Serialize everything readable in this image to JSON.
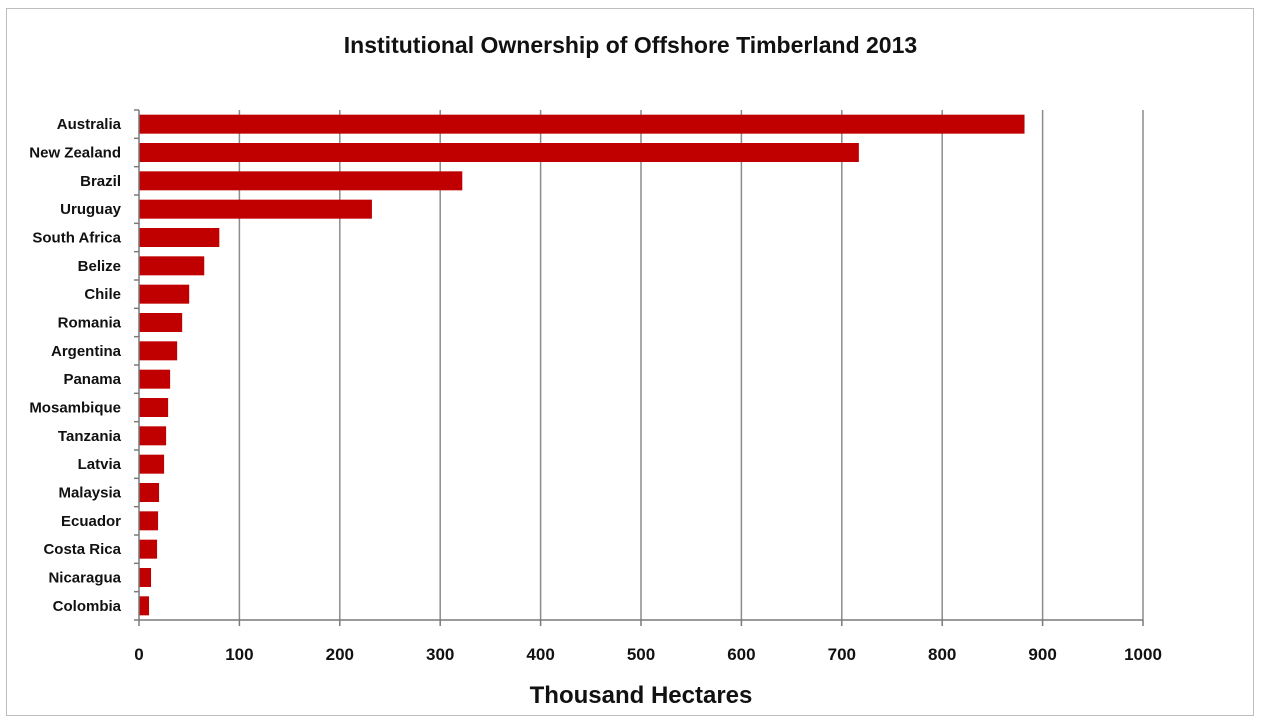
{
  "chart_data": {
    "type": "bar",
    "orientation": "horizontal",
    "title": "Institutional Ownership of Offshore Timberland 2013",
    "xlabel": "Thousand Hectares",
    "ylabel": "",
    "xlim": [
      0,
      1000
    ],
    "xticks": [
      0,
      100,
      200,
      300,
      400,
      500,
      600,
      700,
      800,
      900,
      1000
    ],
    "grid": "vertical",
    "legend": "none",
    "bar_color": "#C00000",
    "categories": [
      "Australia",
      "New Zealand",
      "Brazil",
      "Uruguay",
      "South Africa",
      "Belize",
      "Chile",
      "Romania",
      "Argentina",
      "Panama",
      "Mosambique",
      "Tanzania",
      "Latvia",
      "Malaysia",
      "Ecuador",
      "Costa Rica",
      "Nicaragua",
      "Colombia"
    ],
    "values": [
      882,
      717,
      322,
      232,
      80,
      65,
      50,
      43,
      38,
      31,
      29,
      27,
      25,
      20,
      19,
      18,
      12,
      10
    ]
  }
}
